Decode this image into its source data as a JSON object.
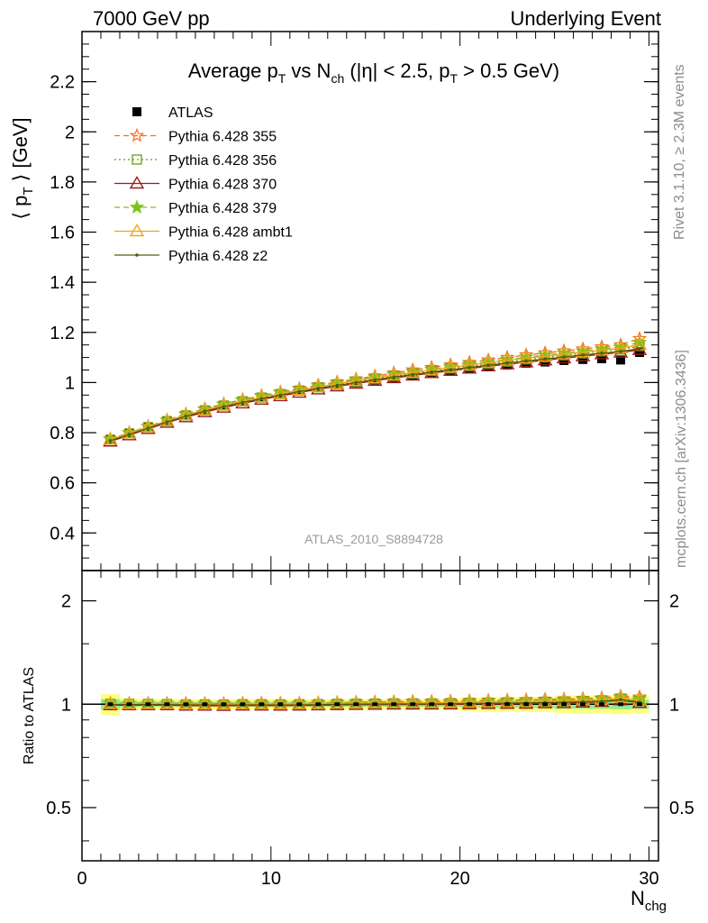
{
  "header": {
    "energy_label": "7000 GeV pp",
    "process_label": "Underlying Event"
  },
  "side_labels": {
    "rivet": "Rivet 3.1.10, ≥ 2.3M events",
    "mcplots": "mcplots.cern.ch [arXiv:1306.3436]"
  },
  "colors": {
    "atlas": "#000000",
    "p355": "#ff6a1a",
    "p356": "#6e9a12",
    "p370": "#9b1b1b",
    "p379": "#7fc21b",
    "ambt1": "#f5a21e",
    "z2": "#5a5a10",
    "band_outer": "#ffff80",
    "band_inner": "#90ee90"
  },
  "chart_data": [
    {
      "type": "line",
      "title_parts": [
        "Average p",
        "T",
        " vs N",
        "ch",
        " (|η| < 2.5, p",
        "T",
        " > 0.5 GeV)"
      ],
      "ylabel_parts": [
        "⟨ p",
        "T",
        " ⟩ [GeV]"
      ],
      "watermark": "ATLAS_2010_S8894728",
      "xlim": [
        0,
        30.5
      ],
      "ylim": [
        0.25,
        2.4
      ],
      "y_ticks": [
        0.4,
        0.6,
        0.8,
        1,
        1.2,
        1.4,
        1.6,
        1.8,
        2,
        2.2
      ],
      "y_tick_labels": [
        "0.4",
        "0.6",
        "0.8",
        "1",
        "1.2",
        "1.4",
        "1.6",
        "1.8",
        "2",
        "2.2"
      ],
      "legend_position": "top-left",
      "x": [
        1.5,
        2.5,
        3.5,
        4.5,
        5.5,
        6.5,
        7.5,
        8.5,
        9.5,
        10.5,
        11.5,
        12.5,
        13.5,
        14.5,
        15.5,
        16.5,
        17.5,
        18.5,
        19.5,
        20.5,
        21.5,
        22.5,
        23.5,
        24.5,
        25.5,
        26.5,
        27.5,
        28.5,
        29.5
      ],
      "series": [
        {
          "name": "ATLAS",
          "color_key": "atlas",
          "style": "data",
          "values": [
            0.77,
            0.795,
            0.82,
            0.845,
            0.87,
            0.89,
            0.91,
            0.925,
            0.94,
            0.955,
            0.968,
            0.98,
            0.99,
            1.0,
            1.01,
            1.02,
            1.03,
            1.04,
            1.048,
            1.055,
            1.063,
            1.07,
            1.077,
            1.082,
            1.088,
            1.092,
            1.095,
            1.09,
            1.12
          ]
        },
        {
          "name": "Pythia 6.428 355",
          "color_key": "p355",
          "style": "dashed",
          "marker": "star-open",
          "values": [
            0.775,
            0.8,
            0.825,
            0.85,
            0.875,
            0.895,
            0.915,
            0.932,
            0.948,
            0.962,
            0.976,
            0.99,
            1.002,
            1.014,
            1.026,
            1.038,
            1.05,
            1.06,
            1.07,
            1.08,
            1.09,
            1.1,
            1.11,
            1.118,
            1.126,
            1.134,
            1.142,
            1.15,
            1.175
          ]
        },
        {
          "name": "Pythia 6.428 356",
          "color_key": "p356",
          "style": "dotted",
          "marker": "square-open",
          "values": [
            0.772,
            0.797,
            0.822,
            0.846,
            0.869,
            0.889,
            0.908,
            0.925,
            0.94,
            0.954,
            0.968,
            0.981,
            0.993,
            1.004,
            1.015,
            1.026,
            1.036,
            1.046,
            1.056,
            1.065,
            1.074,
            1.083,
            1.092,
            1.1,
            1.108,
            1.116,
            1.124,
            1.132,
            1.145
          ]
        },
        {
          "name": "Pythia 6.428 370",
          "color_key": "p370",
          "style": "solid",
          "marker": "triangle-open",
          "values": [
            0.765,
            0.79,
            0.815,
            0.84,
            0.862,
            0.882,
            0.9,
            0.917,
            0.932,
            0.946,
            0.96,
            0.973,
            0.985,
            0.996,
            1.007,
            1.018,
            1.028,
            1.038,
            1.047,
            1.056,
            1.065,
            1.073,
            1.081,
            1.089,
            1.097,
            1.105,
            1.113,
            1.12,
            1.13
          ]
        },
        {
          "name": "Pythia 6.428 379",
          "color_key": "p379",
          "style": "dashed",
          "marker": "star-filled",
          "values": [
            0.774,
            0.799,
            0.824,
            0.849,
            0.872,
            0.893,
            0.912,
            0.929,
            0.945,
            0.959,
            0.973,
            0.986,
            0.998,
            1.01,
            1.021,
            1.032,
            1.043,
            1.053,
            1.063,
            1.073,
            1.083,
            1.092,
            1.101,
            1.11,
            1.118,
            1.126,
            1.134,
            1.142,
            1.16
          ]
        },
        {
          "name": "Pythia 6.428 ambt1",
          "color_key": "ambt1",
          "style": "solid",
          "marker": "triangle-open",
          "values": [
            0.772,
            0.797,
            0.822,
            0.847,
            0.87,
            0.89,
            0.909,
            0.926,
            0.942,
            0.956,
            0.97,
            0.983,
            0.995,
            1.007,
            1.018,
            1.029,
            1.04,
            1.05,
            1.06,
            1.07,
            1.079,
            1.088,
            1.097,
            1.105,
            1.113,
            1.121,
            1.129,
            1.137,
            1.15
          ]
        },
        {
          "name": "Pythia 6.428 z2",
          "color_key": "z2",
          "style": "solid",
          "marker": "dot",
          "values": [
            0.768,
            0.793,
            0.818,
            0.843,
            0.866,
            0.886,
            0.904,
            0.921,
            0.936,
            0.95,
            0.964,
            0.977,
            0.989,
            1.0,
            1.011,
            1.022,
            1.032,
            1.042,
            1.051,
            1.06,
            1.069,
            1.078,
            1.086,
            1.094,
            1.102,
            1.11,
            1.117,
            1.124,
            1.135
          ]
        }
      ]
    },
    {
      "type": "line",
      "ylabel": "Ratio to ATLAS",
      "xlabel_parts": [
        "N",
        "chg"
      ],
      "xlim": [
        0,
        30.5
      ],
      "ylim": [
        0.35,
        2.45
      ],
      "y_scale": "log",
      "y_ticks": [
        0.5,
        1,
        2
      ],
      "y_tick_labels": [
        "0.5",
        "1",
        "2"
      ],
      "x_ticks": [
        0,
        10,
        20,
        30
      ],
      "x_tick_labels": [
        "0",
        "10",
        "20",
        "30"
      ],
      "reference_line": 1,
      "uncertainty_band": {
        "x_edges": [
          1,
          2,
          3,
          20,
          21,
          25,
          26,
          27,
          28,
          29,
          30
        ],
        "outer_half_width": [
          0.07,
          0.04,
          0.035,
          0.045,
          0.05,
          0.06,
          0.06,
          0.06,
          0.065,
          0.06
        ],
        "inner_half_width": [
          0.035,
          0.02,
          0.017,
          0.022,
          0.025,
          0.03,
          0.03,
          0.03,
          0.033,
          0.03
        ]
      },
      "note": "ratio of each Pythia series to ATLAS (computed from series values above)"
    }
  ]
}
